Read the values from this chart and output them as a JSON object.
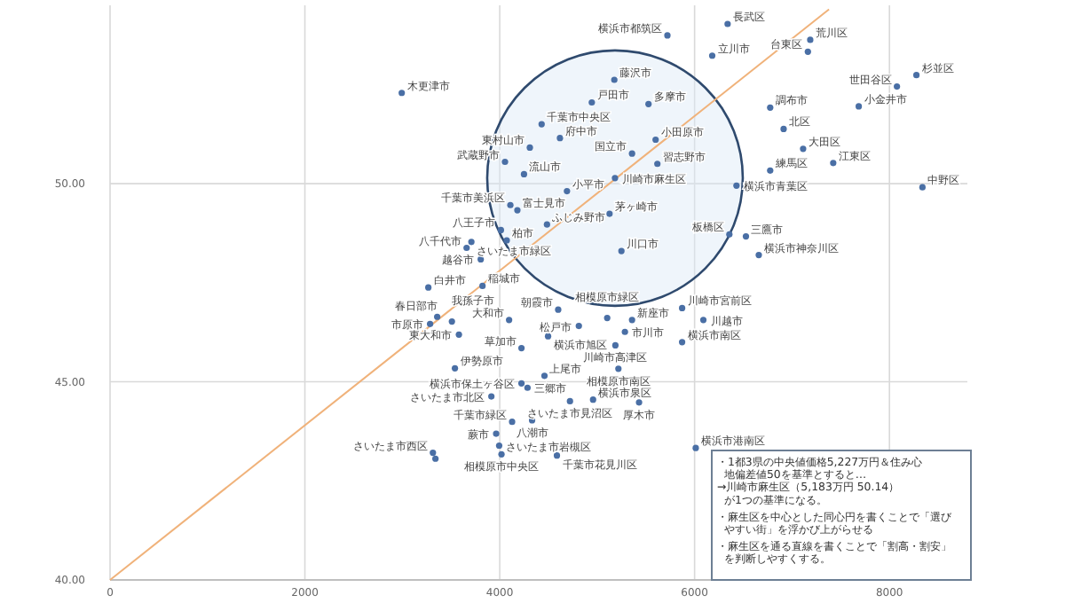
{
  "chart_data": {
    "type": "scatter",
    "xlim": [
      0,
      8800
    ],
    "ylim": [
      40,
      54.5
    ],
    "xticks": [
      0,
      2000,
      4000,
      6000,
      8000
    ],
    "yticks": [
      {
        "value": 40,
        "label": "40.00"
      },
      {
        "value": 45,
        "label": "45.00"
      },
      {
        "value": 50,
        "label": "50.00"
      }
    ],
    "grid": true,
    "series": [
      {
        "marker": "circle",
        "color": "#4a6fa5",
        "x": [
          5721,
          2994,
          6181,
          5176,
          4945,
          5527,
          4430,
          4618,
          4309,
          4054,
          4249,
          5358,
          5600,
          5618,
          5183,
          4690,
          4109,
          4181,
          4485,
          4012,
          3660,
          3709,
          4072,
          3805,
          3823,
          3267,
          5127,
          5249,
          6339,
          7187,
          7163,
          8277,
          8077,
          7685,
          6776,
          6914,
          7114,
          7423,
          6776,
          8339,
          6430,
          6527,
          6357,
          6659,
          5872,
          5358,
          6090,
          5285,
          5187,
          5872,
          5103,
          5218,
          4812,
          4600,
          4496,
          4223,
          4096,
          3509,
          3581,
          3358,
          3285,
          3540,
          4223,
          4285,
          4459,
          3914,
          4127,
          4721,
          4958,
          5430,
          4332,
          3963,
          3994,
          3314,
          3340,
          4018,
          4587,
          6012
        ],
        "values": [
          53.74,
          52.29,
          53.23,
          52.62,
          52.05,
          52.01,
          51.5,
          51.15,
          50.91,
          50.55,
          50.24,
          50.76,
          51.11,
          50.5,
          50.14,
          49.81,
          49.46,
          49.33,
          48.97,
          48.83,
          48.38,
          48.53,
          48.57,
          48.09,
          47.42,
          47.38,
          49.24,
          48.3,
          54.03,
          53.63,
          53.33,
          52.74,
          52.45,
          51.95,
          51.92,
          51.38,
          50.88,
          50.52,
          50.33,
          49.91,
          49.95,
          48.67,
          48.72,
          48.2,
          46.86,
          46.56,
          46.56,
          46.26,
          45.92,
          46.0,
          46.61,
          45.33,
          46.41,
          46.82,
          46.15,
          45.85,
          46.56,
          46.52,
          46.19,
          46.64,
          46.46,
          45.34,
          44.96,
          44.85,
          45.15,
          44.63,
          43.99,
          44.51,
          44.55,
          44.48,
          44.03,
          43.69,
          43.39,
          43.21,
          43.06,
          43.17,
          43.14,
          43.33
        ]
      },
      {
        "type": "line",
        "color": "#f0b27a",
        "x": [
          0,
          7380
        ],
        "values": [
          40,
          54.4
        ]
      }
    ],
    "annotations": [
      {
        "text": "横浜市都筑区",
        "x": 5721,
        "y": 53.74
      },
      {
        "text": "木更津市",
        "x": 2994,
        "y": 52.29
      },
      {
        "text": "立川市",
        "x": 6181,
        "y": 53.23
      },
      {
        "text": "藤沢市",
        "x": 5176,
        "y": 52.62
      },
      {
        "text": "戸田市",
        "x": 4945,
        "y": 52.05
      },
      {
        "text": "多摩市",
        "x": 5527,
        "y": 52.01
      },
      {
        "text": "千葉市中央区",
        "x": 4430,
        "y": 51.5
      },
      {
        "text": "府中市",
        "x": 4618,
        "y": 51.15
      },
      {
        "text": "東村山市",
        "x": 4309,
        "y": 50.91
      },
      {
        "text": "武蔵野市",
        "x": 4054,
        "y": 50.55
      },
      {
        "text": "流山市",
        "x": 4249,
        "y": 50.24
      },
      {
        "text": "国立市",
        "x": 5358,
        "y": 50.76
      },
      {
        "text": "小田原市",
        "x": 5600,
        "y": 51.11
      },
      {
        "text": "習志野市",
        "x": 5618,
        "y": 50.5
      },
      {
        "text": "川崎市麻生区",
        "x": 5183,
        "y": 50.14
      },
      {
        "text": "小平市",
        "x": 4690,
        "y": 49.81
      },
      {
        "text": "千葉市美浜区",
        "x": 4109,
        "y": 49.46
      },
      {
        "text": "富士見市",
        "x": 4181,
        "y": 49.33
      },
      {
        "text": "ふじみ野市",
        "x": 4485,
        "y": 48.97
      },
      {
        "text": "八王子市",
        "x": 4012,
        "y": 48.83
      },
      {
        "text": "八千代市",
        "x": 3660,
        "y": 48.38
      },
      {
        "text": "さいたま市緑区",
        "x": 3709,
        "y": 48.53
      },
      {
        "text": "柏市",
        "x": 4072,
        "y": 48.57
      },
      {
        "text": "越谷市",
        "x": 3805,
        "y": 48.09
      },
      {
        "text": "稲城市",
        "x": 3823,
        "y": 47.42
      },
      {
        "text": "白井市",
        "x": 3267,
        "y": 47.38
      },
      {
        "text": "茅ヶ崎市",
        "x": 5127,
        "y": 49.24
      },
      {
        "text": "川口市",
        "x": 5249,
        "y": 48.3
      },
      {
        "text": "長武区",
        "x": 6339,
        "y": 54.03
      },
      {
        "text": "荒川区",
        "x": 7187,
        "y": 53.63
      },
      {
        "text": "台東区",
        "x": 7163,
        "y": 53.33
      },
      {
        "text": "杉並区",
        "x": 8277,
        "y": 52.74
      },
      {
        "text": "世田谷区",
        "x": 8077,
        "y": 52.45
      },
      {
        "text": "小金井市",
        "x": 7685,
        "y": 51.95
      },
      {
        "text": "調布市",
        "x": 6776,
        "y": 51.92
      },
      {
        "text": "北区",
        "x": 6914,
        "y": 51.38
      },
      {
        "text": "大田区",
        "x": 7114,
        "y": 50.88
      },
      {
        "text": "江東区",
        "x": 7423,
        "y": 50.52
      },
      {
        "text": "練馬区",
        "x": 6776,
        "y": 50.33
      },
      {
        "text": "中野区",
        "x": 8339,
        "y": 49.91
      },
      {
        "text": "横浜市青葉区",
        "x": 6430,
        "y": 49.95
      },
      {
        "text": "三鷹市",
        "x": 6527,
        "y": 48.67
      },
      {
        "text": "板橋区",
        "x": 6357,
        "y": 48.72
      },
      {
        "text": "横浜市神奈川区",
        "x": 6659,
        "y": 48.2
      },
      {
        "text": "川崎市宮前区",
        "x": 5872,
        "y": 46.86
      },
      {
        "text": "新座市",
        "x": 5358,
        "y": 46.56
      },
      {
        "text": "川越市",
        "x": 6090,
        "y": 46.56
      },
      {
        "text": "市川市",
        "x": 5285,
        "y": 46.26
      },
      {
        "text": "川崎市高津区",
        "x": 5187,
        "y": 45.92
      },
      {
        "text": "横浜市南区",
        "x": 5872,
        "y": 46.0
      },
      {
        "text": "相模原市緑区",
        "x": 5103,
        "y": 46.61
      },
      {
        "text": "相模原市南区",
        "x": 5218,
        "y": 45.33
      },
      {
        "text": "松戸市",
        "x": 4812,
        "y": 46.41
      },
      {
        "text": "朝霞市",
        "x": 4600,
        "y": 46.82
      },
      {
        "text": "横浜市旭区",
        "x": 4496,
        "y": 46.15
      },
      {
        "text": "草加市",
        "x": 4223,
        "y": 45.85
      },
      {
        "text": "大和市",
        "x": 4096,
        "y": 46.56
      },
      {
        "text": "春日部市",
        "x": 3509,
        "y": 46.52
      },
      {
        "text": "東大和市",
        "x": 3581,
        "y": 46.19
      },
      {
        "text": "我孫子市",
        "x": 3358,
        "y": 46.64
      },
      {
        "text": "市原市",
        "x": 3285,
        "y": 46.46
      },
      {
        "text": "伊勢原市",
        "x": 3540,
        "y": 45.34
      },
      {
        "text": "横浜市保土ヶ谷区",
        "x": 4223,
        "y": 44.96
      },
      {
        "text": "三郷市",
        "x": 4285,
        "y": 44.85
      },
      {
        "text": "上尾市",
        "x": 4459,
        "y": 45.15
      },
      {
        "text": "さいたま市北区",
        "x": 3914,
        "y": 44.63
      },
      {
        "text": "千葉市緑区",
        "x": 4127,
        "y": 43.99
      },
      {
        "text": "さいたま市見沼区",
        "x": 4721,
        "y": 44.51
      },
      {
        "text": "横浜市泉区",
        "x": 4958,
        "y": 44.55
      },
      {
        "text": "厚木市",
        "x": 5430,
        "y": 44.48
      },
      {
        "text": "八潮市",
        "x": 4332,
        "y": 44.03
      },
      {
        "text": "蕨市",
        "x": 3963,
        "y": 43.69
      },
      {
        "text": "さいたま市岩槻区",
        "x": 3994,
        "y": 43.39
      },
      {
        "text": "さいたま市西区",
        "x": 3314,
        "y": 43.21
      },
      {
        "text": "相模原市中央区",
        "x": 4018,
        "y": 43.17
      },
      {
        "text": "千葉市花見川区",
        "x": 4587,
        "y": 43.14
      },
      {
        "text": "横浜市港南区",
        "x": 6012,
        "y": 43.33
      },
      "・1都3県の中央値価格5,227万円＆住み心地偏差値50を基準とすると…",
      "→川崎市麻生区（5,183万円 50.14）が1つの基準になる。",
      "・麻生区を中心とした同心円を書くことで「選びやすい街」を浮かび上がらせる",
      "・麻生区を通る直線を書くことで「割高・割安」を判断しやすくする。"
    ]
  }
}
